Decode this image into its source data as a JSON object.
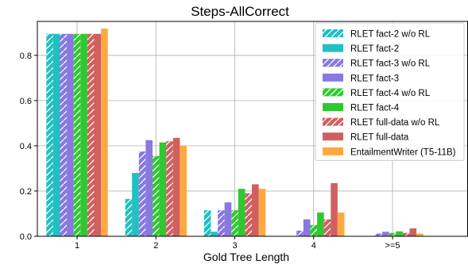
{
  "chart_data": {
    "type": "bar",
    "title": "Steps-AllCorrect",
    "xlabel": "Gold Tree Length",
    "ylabel": "",
    "categories": [
      "1",
      "2",
      "3",
      "4",
      ">=5"
    ],
    "ylim": [
      0,
      0.95
    ],
    "yticks": [
      0.0,
      0.2,
      0.4,
      0.6,
      0.8
    ],
    "ytick_labels": [
      "0.0",
      "0.2",
      "0.4",
      "0.6",
      "0.8"
    ],
    "grid": true,
    "legend_position": "top-right",
    "series": [
      {
        "name": "RLET fact-2 w/o RL",
        "color": "#20c0c0",
        "hatched": true,
        "values": [
          0.895,
          0.165,
          0.115,
          0.0,
          0.0
        ]
      },
      {
        "name": "RLET fact-2",
        "color": "#20c0c0",
        "hatched": false,
        "values": [
          0.895,
          0.28,
          0.02,
          0.0,
          0.0
        ]
      },
      {
        "name": "RLET fact-3 w/o RL",
        "color": "#8878e0",
        "hatched": true,
        "values": [
          0.895,
          0.375,
          0.115,
          0.025,
          0.012
        ]
      },
      {
        "name": "RLET fact-3",
        "color": "#8878e0",
        "hatched": false,
        "values": [
          0.895,
          0.425,
          0.15,
          0.075,
          0.02
        ]
      },
      {
        "name": "RLET fact-4 w/o RL",
        "color": "#30c830",
        "hatched": true,
        "values": [
          0.895,
          0.355,
          0.115,
          0.05,
          0.015
        ]
      },
      {
        "name": "RLET fact-4",
        "color": "#30c830",
        "hatched": false,
        "values": [
          0.895,
          0.415,
          0.21,
          0.105,
          0.022
        ]
      },
      {
        "name": "RLET full-data w/o RL",
        "color": "#d06060",
        "hatched": true,
        "values": [
          0.895,
          0.42,
          0.19,
          0.075,
          0.015
        ]
      },
      {
        "name": "RLET full-data",
        "color": "#d06060",
        "hatched": false,
        "values": [
          0.895,
          0.435,
          0.23,
          0.235,
          0.035
        ]
      },
      {
        "name": "EntailmentWriter (T5-11B)",
        "color": "#ffa840",
        "hatched": false,
        "values": [
          0.918,
          0.4,
          0.21,
          0.105,
          0.012
        ]
      }
    ]
  }
}
